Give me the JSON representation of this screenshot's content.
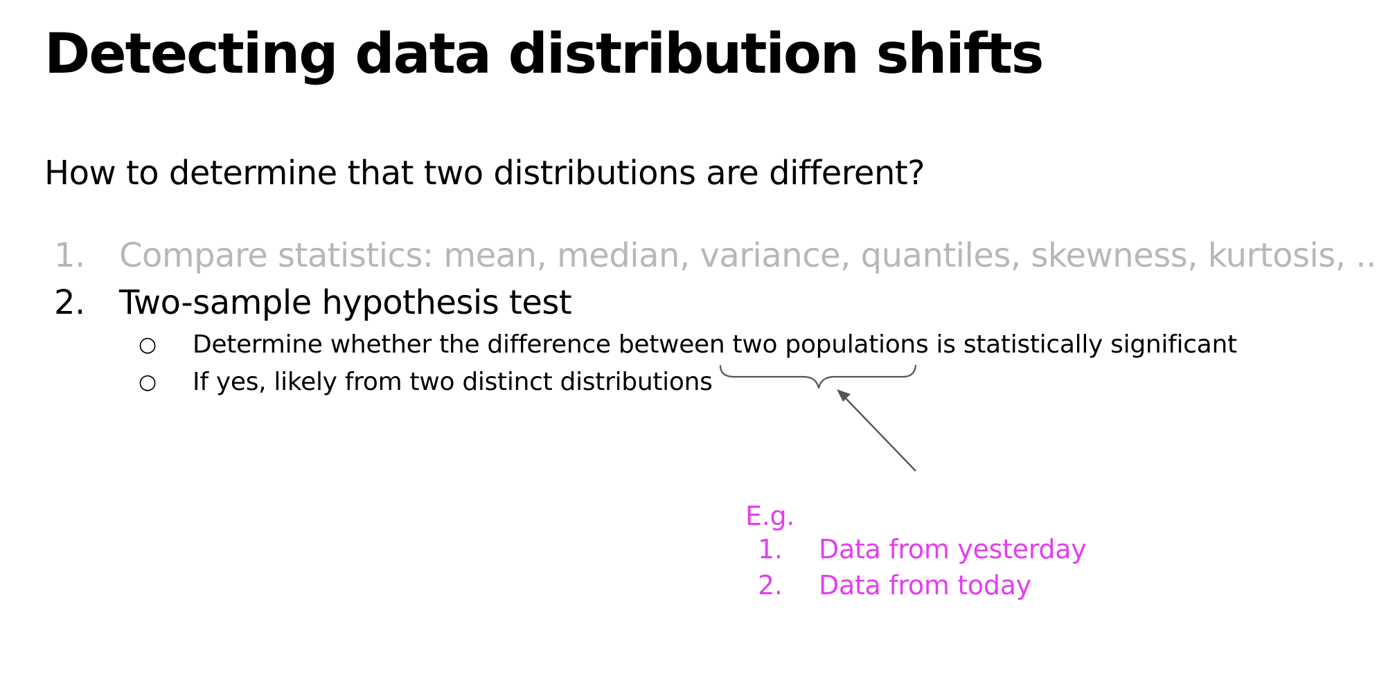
{
  "slide": {
    "title": "Detecting data distribution shifts",
    "question": "How to determine that two distributions are different?",
    "list": [
      {
        "number": "1.",
        "text": "Compare statistics: mean, median, variance, quantiles, skewness, kurtosis, ..."
      },
      {
        "number": "2.",
        "text": "Two-sample hypothesis test"
      }
    ],
    "sub_list": [
      {
        "bullet": "○",
        "text": "Determine whether the difference between two populations is statistically significant"
      },
      {
        "bullet": "○",
        "text": "If yes, likely from two distinct distributions"
      }
    ],
    "annotation": {
      "label": "E.g.",
      "items": [
        {
          "number": "1.",
          "text": "Data from yesterday"
        },
        {
          "number": "2.",
          "text": "Data from today"
        }
      ],
      "color": "#e33ef0",
      "muted_color": "#b7b7b7",
      "arrow_color": "#555555"
    }
  }
}
